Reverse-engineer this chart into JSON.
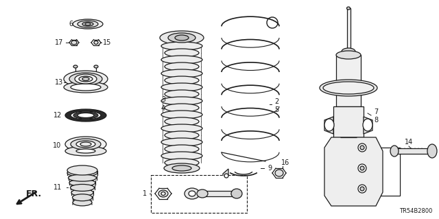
{
  "background_color": "#ffffff",
  "diagram_code": "TR54B2800",
  "fr_label": "FR.",
  "line_color": "#1a1a1a",
  "lw": 0.9,
  "label_fontsize": 7.0,
  "diagram_code_fontsize": 6.0
}
